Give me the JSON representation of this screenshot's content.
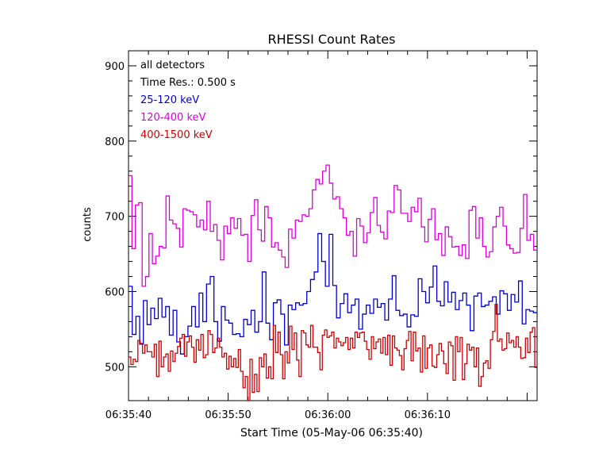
{
  "chart_data": {
    "type": "line",
    "title": "RHESSI Count Rates",
    "xlabel": "Start Time (05-May-06 06:35:40)",
    "ylabel": "counts",
    "x_range_seconds": [
      0,
      41
    ],
    "ylim": [
      455,
      920
    ],
    "x_tick_labels": [
      "06:35:40",
      "06:35:50",
      "06:36:00",
      "06:36:10"
    ],
    "y_ticks": [
      500,
      600,
      700,
      800,
      900
    ],
    "step_seconds": 0.5,
    "annotations": [
      "all detectors",
      "Time Res.: 0.500 s"
    ],
    "grid": false,
    "legend_placement": "top-left",
    "series": [
      {
        "name": "25-120 keV",
        "color": "#0000cc",
        "values": [
          607,
          543,
          567,
          530,
          588,
          556,
          578,
          564,
          591,
          566,
          580,
          542,
          575,
          533,
          517,
          540,
          554,
          580,
          553,
          598,
          560,
          610,
          620,
          560,
          534,
          580,
          562,
          558,
          543,
          544,
          540,
          563,
          556,
          575,
          546,
          560,
          626,
          558,
          536,
          585,
          589,
          570,
          529,
          582,
          576,
          585,
          582,
          584,
          600,
          616,
          626,
          677,
          640,
          607,
          676,
          608,
          565,
          584,
          597,
          572,
          582,
          590,
          550,
          570,
          582,
          571,
          590,
          579,
          584,
          562,
          590,
          621,
          575,
          568,
          570,
          553,
          569,
          567,
          617,
          600,
          585,
          606,
          634,
          587,
          581,
          613,
          586,
          599,
          576,
          588,
          598,
          582,
          548,
          594,
          598,
          580,
          582,
          587,
          593,
          570,
          601,
          597,
          575,
          596,
          586,
          614,
          557,
          576,
          574,
          572
        ]
      },
      {
        "name": "120-400 keV",
        "color": "#dd00dd",
        "values": [
          754,
          657,
          715,
          718,
          607,
          620,
          677,
          637,
          647,
          660,
          658,
          727,
          695,
          690,
          684,
          659,
          710,
          708,
          706,
          702,
          686,
          695,
          682,
          720,
          680,
          689,
          668,
          642,
          687,
          677,
          698,
          684,
          697,
          675,
          676,
          640,
          701,
          722,
          682,
          667,
          713,
          698,
          659,
          665,
          655,
          646,
          632,
          683,
          671,
          695,
          693,
          702,
          700,
          710,
          735,
          749,
          743,
          760,
          768,
          744,
          723,
          726,
          710,
          698,
          675,
          680,
          647,
          697,
          687,
          665,
          678,
          705,
          725,
          688,
          679,
          670,
          707,
          705,
          741,
          735,
          704,
          704,
          693,
          712,
          706,
          724,
          686,
          666,
          696,
          710,
          669,
          677,
          648,
          686,
          673,
          659,
          660,
          648,
          662,
          644,
          708,
          713,
          671,
          698,
          660,
          646,
          653,
          686,
          700,
          712,
          687,
          662,
          657,
          651,
          652,
          684,
          729,
          668,
          676,
          655
        ]
      },
      {
        "name": "400-1500 keV",
        "color": "#cc0000",
        "values": [
          513,
          503,
          510,
          507,
          535,
          531,
          518,
          529,
          520,
          520,
          513,
          530,
          487,
          534,
          500,
          513,
          517,
          494,
          521,
          507,
          518,
          527,
          538,
          543,
          514,
          533,
          541,
          526,
          506,
          536,
          522,
          543,
          512,
          516,
          548,
          543,
          519,
          525,
          538,
          526,
          513,
          518,
          497,
          514,
          500,
          511,
          499,
          523,
          494,
          472,
          487,
          454,
          510,
          466,
          490,
          467,
          512,
          500,
          517,
          485,
          500,
          484,
          555,
          519,
          546,
          516,
          484,
          520,
          505,
          554,
          523,
          545,
          509,
          487,
          548,
          545,
          529,
          526,
          555,
          526,
          526,
          519,
          496,
          542,
          549,
          539,
          541,
          546,
          525,
          538,
          533,
          528,
          532,
          539,
          523,
          538,
          525,
          546,
          539,
          545,
          546,
          534,
          523,
          510,
          540,
          524,
          533,
          537,
          518,
          539,
          516,
          542,
          502,
          541,
          525,
          522,
          515,
          496,
          524,
          535,
          547,
          508,
          546,
          521,
          525,
          493,
          541,
          498,
          525,
          529,
          501,
          499,
          516,
          531,
          521,
          504,
          491,
          533,
          528,
          482,
          540,
          520,
          539,
          483,
          504,
          530,
          522,
          526,
          500,
          525,
          474,
          487,
          505,
          508,
          498,
          536,
          547,
          583,
          534,
          537,
          522,
          524,
          545,
          532,
          535,
          526,
          540,
          526,
          511,
          512,
          538,
          519,
          546,
          552,
          499
        ]
      }
    ]
  }
}
